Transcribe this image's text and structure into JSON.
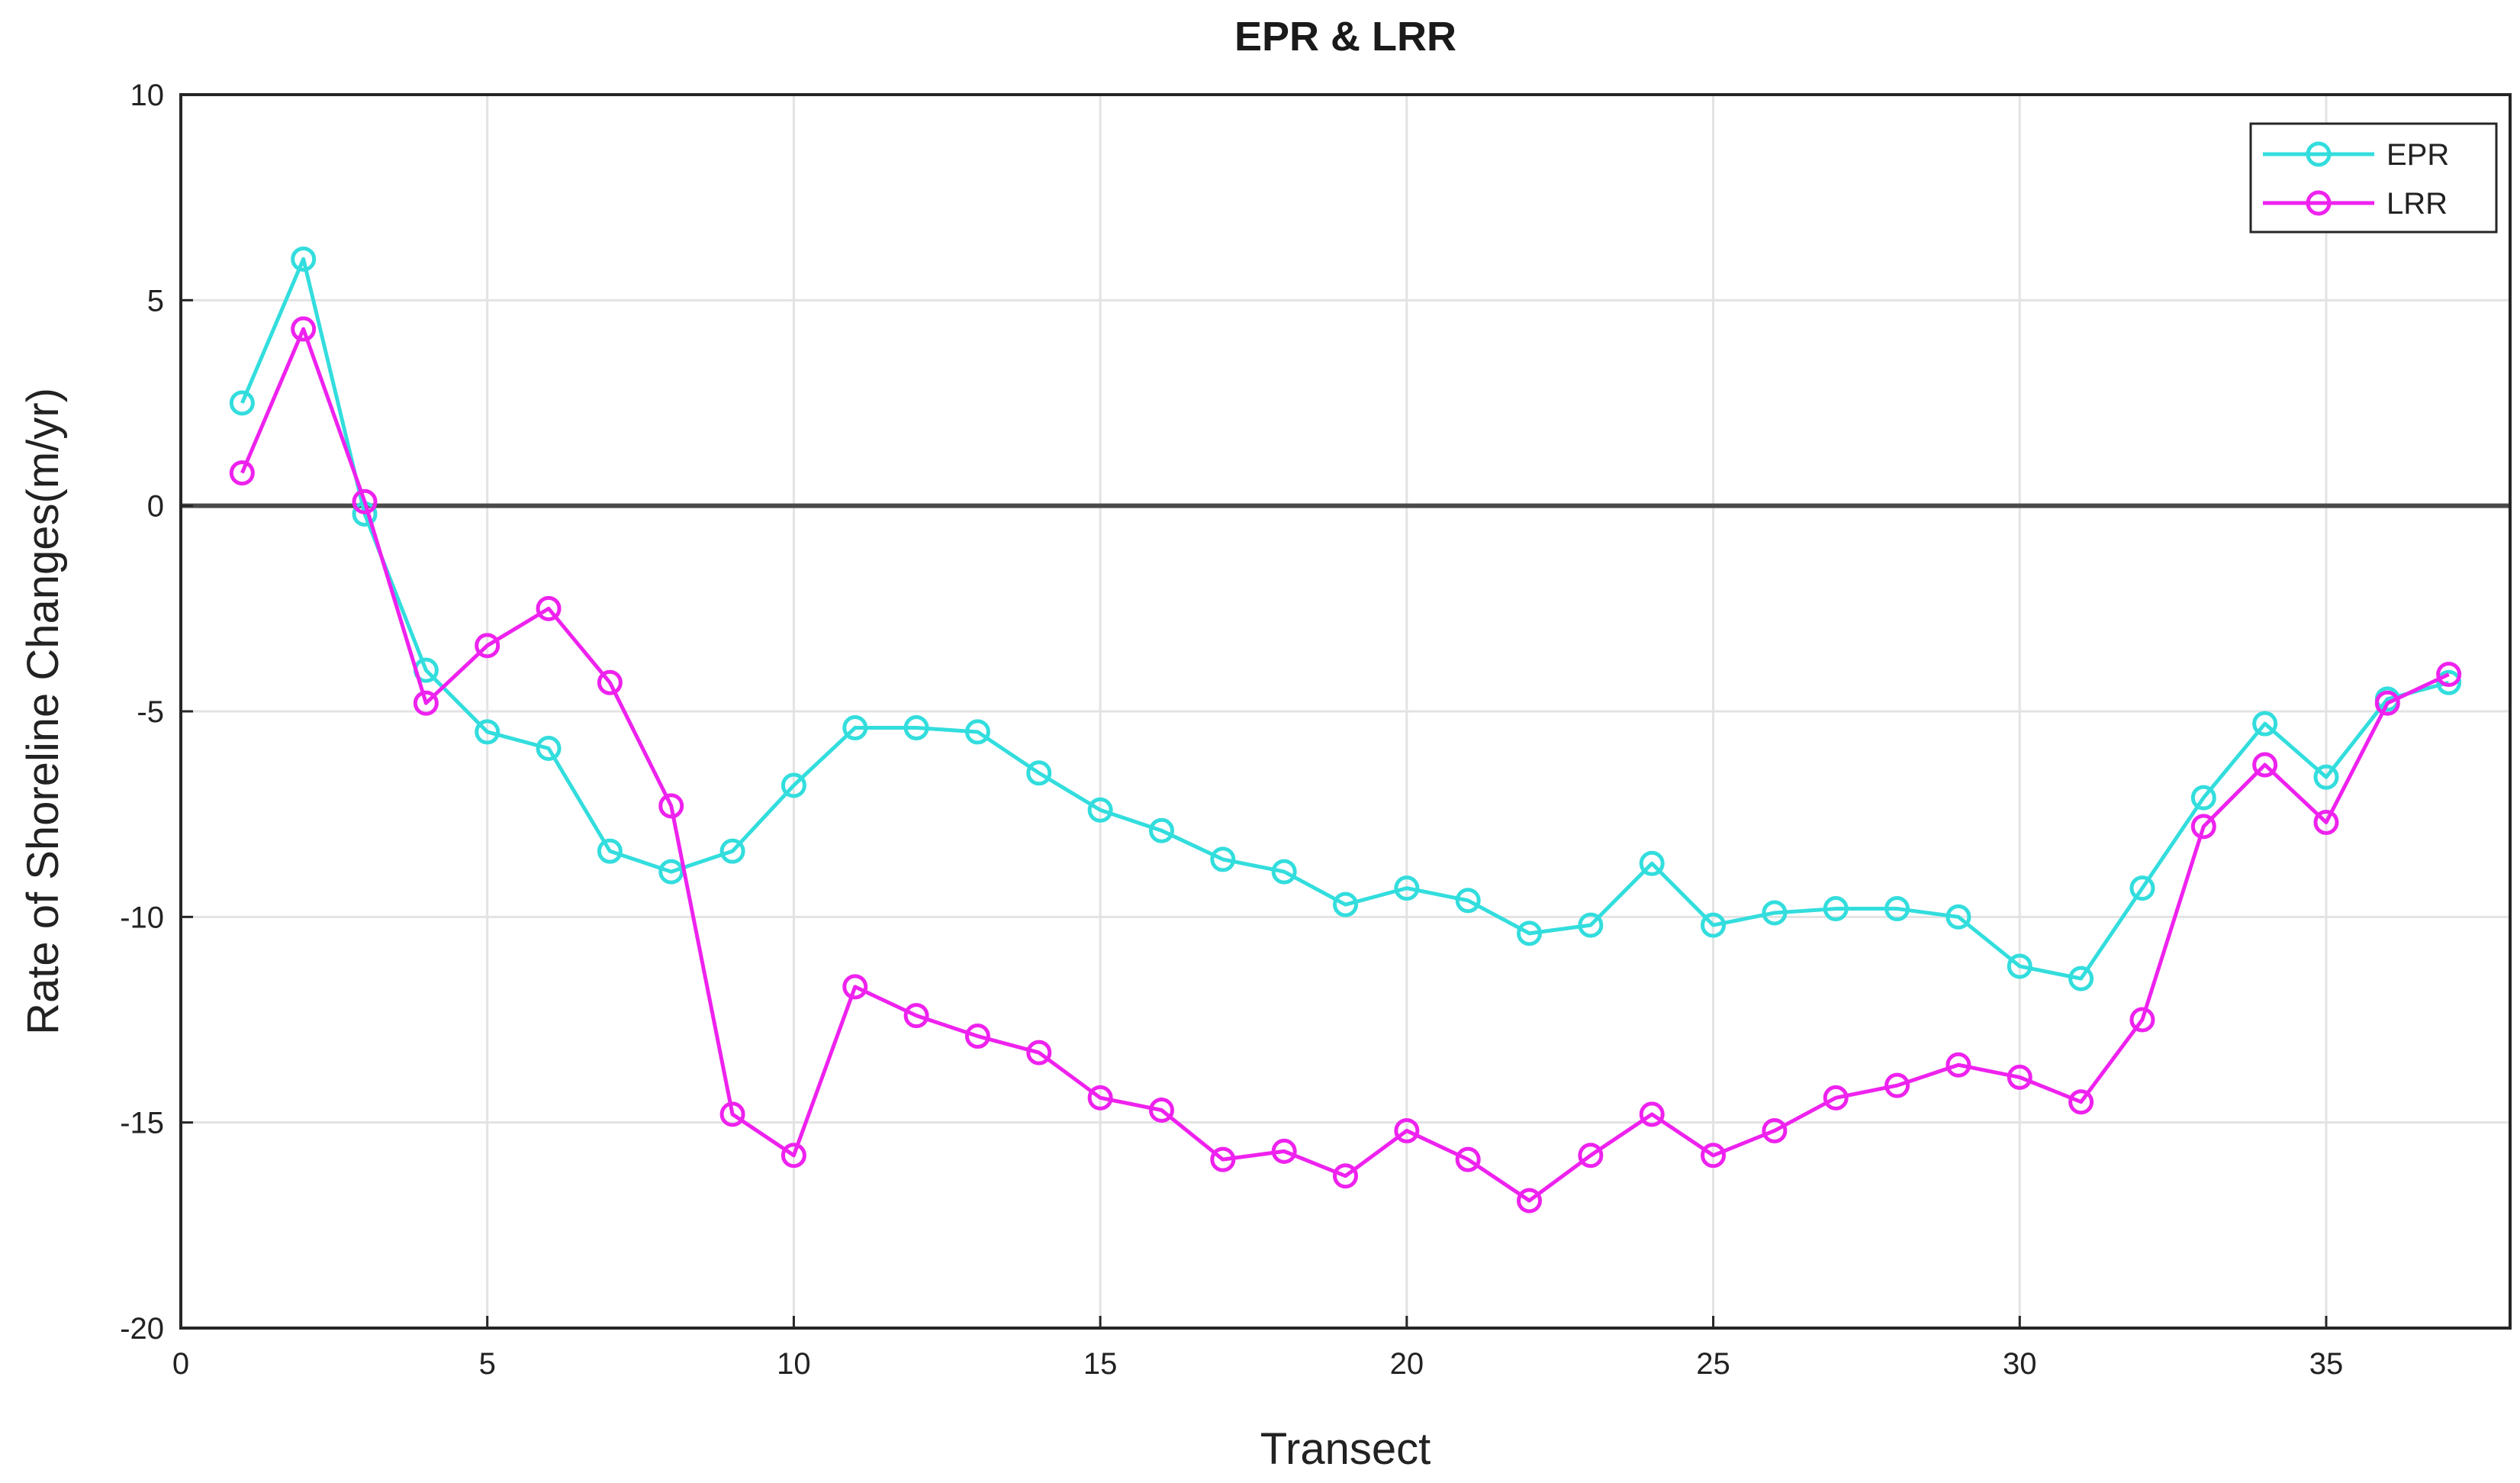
{
  "chart_data": {
    "type": "line",
    "title": "EPR & LRR",
    "xlabel": "Transect",
    "ylabel": "Rate of Shoreline Changes(m/yr)",
    "xlim": [
      0,
      38
    ],
    "ylim": [
      -20,
      10
    ],
    "x_ticks": [
      0,
      5,
      10,
      15,
      20,
      25,
      30,
      35
    ],
    "y_ticks": [
      -20,
      -15,
      -10,
      -5,
      0,
      5,
      10
    ],
    "grid": true,
    "legend_position": "top-right",
    "x": [
      1,
      2,
      3,
      4,
      5,
      6,
      7,
      8,
      9,
      10,
      11,
      12,
      13,
      14,
      15,
      16,
      17,
      18,
      19,
      20,
      21,
      22,
      23,
      24,
      25,
      26,
      27,
      28,
      29,
      30,
      31,
      32,
      33,
      34,
      35,
      36,
      37
    ],
    "series": [
      {
        "name": "EPR",
        "color": "#33dddd",
        "marker": "circle",
        "values": [
          2.5,
          6.0,
          -0.2,
          -4.0,
          -5.5,
          -5.9,
          -8.4,
          -8.9,
          -8.4,
          -6.8,
          -5.4,
          -5.4,
          -5.5,
          -6.5,
          -7.4,
          -7.9,
          -8.6,
          -8.9,
          -9.7,
          -9.3,
          -9.6,
          -10.4,
          -10.2,
          -8.7,
          -10.2,
          -9.9,
          -9.8,
          -9.8,
          -10.0,
          -11.2,
          -11.5,
          -9.3,
          -7.1,
          -5.3,
          -6.6,
          -4.7,
          -4.3
        ]
      },
      {
        "name": "LRR",
        "color": "#ee22ee",
        "marker": "circle",
        "values": [
          0.8,
          4.3,
          0.1,
          -4.8,
          -3.4,
          -2.5,
          -4.3,
          -7.3,
          -14.8,
          -15.8,
          -11.7,
          -12.4,
          -12.9,
          -13.3,
          -14.4,
          -14.7,
          -15.9,
          -15.7,
          -16.3,
          -15.2,
          -15.9,
          -16.9,
          -15.8,
          -14.8,
          -15.8,
          -15.2,
          -14.4,
          -14.1,
          -13.6,
          -13.9,
          -14.5,
          -12.5,
          -7.8,
          -6.3,
          -7.7,
          -4.8,
          -4.1
        ]
      }
    ]
  },
  "colors": {
    "background": "#ffffff",
    "grid": "#e3e3e3",
    "axis": "#262626",
    "zero_line": "#4a4a4a"
  }
}
